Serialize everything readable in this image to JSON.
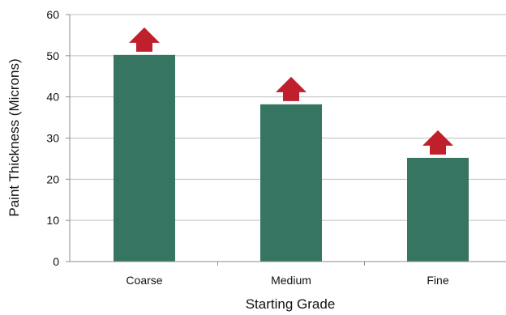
{
  "chart_data": {
    "type": "bar",
    "categories": [
      "Coarse",
      "Medium",
      "Fine"
    ],
    "values": [
      50.2,
      38.2,
      25.2
    ],
    "xlabel": "Starting Grade",
    "ylabel": "Paint Thickness (Microns)",
    "ylim": [
      0,
      60
    ],
    "yticks": [
      0,
      10,
      20,
      30,
      40,
      50,
      60
    ],
    "grid": true,
    "legend": "none",
    "markers": "upward arrow above each bar",
    "colors": {
      "bar": "#367561",
      "arrow": "#c0202c",
      "grid": "#bfbfbf",
      "axis": "#8c8c8c"
    }
  }
}
